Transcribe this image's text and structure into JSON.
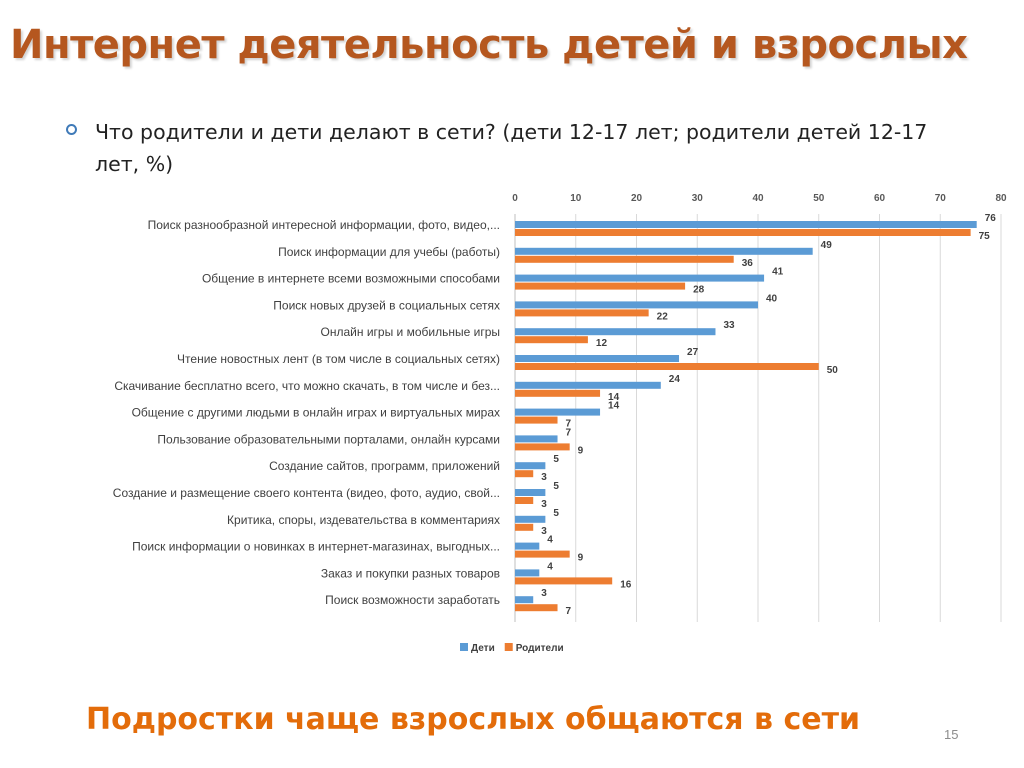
{
  "slide": {
    "title": "Интернет деятельность детей и взрослых",
    "bullet": "Что родители и дети делают в сети? (дети 12-17 лет; родители детей 12-17 лет, %)",
    "bottom_note": "Подростки чаще взрослых общаются в сети",
    "page_number": "15"
  },
  "chart_data": {
    "type": "bar",
    "orientation": "horizontal",
    "xlim": [
      0,
      80
    ],
    "ticks": [
      0,
      10,
      20,
      30,
      40,
      50,
      60,
      70,
      80
    ],
    "tick_labels": [
      "0",
      "10",
      "20",
      "30",
      "40",
      "50",
      "60",
      "70",
      "80"
    ],
    "axis_position": "top",
    "grid": true,
    "legend_position": "bottom",
    "categories": [
      "Поиск разнообразной интересной информации, фото, видео,...",
      "Поиск информации для учебы (работы)",
      "Общение в интернете всеми возможными способами",
      "Поиск новых друзей в социальных сетях",
      "Онлайн игры и мобильные игры",
      "Чтение новостных лент (в том числе в социальных сетях)",
      "Скачивание бесплатно всего, что можно скачать, в том числе и без...",
      "Общение с другими людьми в онлайн играх и виртуальных мирах",
      "Пользование образовательными порталами, онлайн курсами",
      "Создание сайтов, программ, приложений",
      "Создание и размещение своего контента (видео, фото, аудио, свой...",
      "Критика, споры, издевательства в комментариях",
      "Поиск информации о новинках в интернет-магазинах, выгодных...",
      "Заказ и покупки разных товаров",
      "Поиск возможности заработать"
    ],
    "series": [
      {
        "name": "Дети",
        "color": "#5b9bd5",
        "values": [
          76,
          49,
          41,
          40,
          33,
          27,
          24,
          14,
          7,
          5,
          5,
          5,
          4,
          4,
          3
        ]
      },
      {
        "name": "Родители",
        "color": "#ed7d31",
        "values": [
          75,
          36,
          28,
          22,
          12,
          50,
          14,
          7,
          9,
          3,
          3,
          3,
          9,
          16,
          7
        ]
      }
    ]
  }
}
